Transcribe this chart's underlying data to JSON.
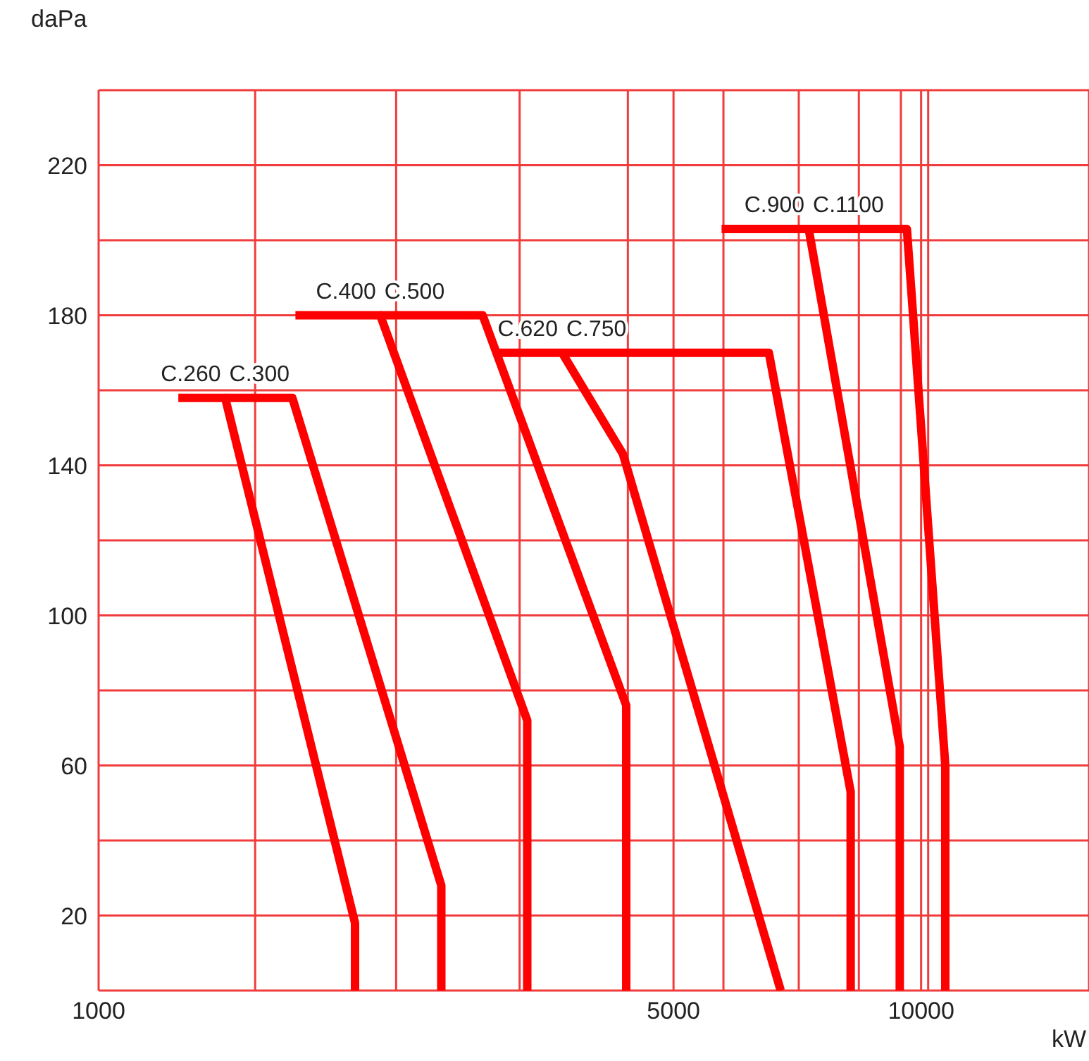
{
  "chart_data": {
    "type": "line",
    "xlabel": "kW",
    "ylabel": "daPa",
    "log": "x",
    "xlim": [
      1000,
      16000
    ],
    "xticks": [
      1000,
      {
        "value": 1550,
        "label": null
      },
      {
        "value": 2300,
        "label": null
      },
      {
        "value": 3250,
        "label": null
      },
      {
        "value": 4400,
        "label": null
      },
      5000,
      {
        "value": 5750,
        "label": null
      },
      {
        "value": 7100,
        "label": null
      },
      {
        "value": 8400,
        "label": null
      },
      {
        "value": 9450,
        "label": null
      },
      10000,
      {
        "value": 10200,
        "label": null
      }
    ],
    "ylim": [
      0,
      240
    ],
    "yticks": [
      {
        "value": 0,
        "label": null
      },
      20,
      {
        "value": 40,
        "label": null
      },
      60,
      {
        "value": 80,
        "label": null
      },
      100,
      {
        "value": 120,
        "label": null
      },
      140,
      {
        "value": 160,
        "label": null
      },
      180,
      {
        "value": 200,
        "label": null
      },
      220,
      {
        "value": 240,
        "label": null
      }
    ],
    "grid": true,
    "legend": false,
    "marker": "none",
    "line_style": "solid",
    "series": [
      {
        "name": "C.260",
        "color": "#ff0000",
        "x": [
          1250,
          1425,
          2050,
          2050
        ],
        "values": [
          158,
          158,
          18,
          0
        ]
      },
      {
        "name": "C.300",
        "color": "#ff0000",
        "x": [
          1425,
          1720,
          2610,
          2610
        ],
        "values": [
          158,
          158,
          28,
          0
        ]
      },
      {
        "name": "C.400",
        "color": "#ff0000",
        "x": [
          1735,
          2200,
          3320,
          3320
        ],
        "values": [
          180,
          180,
          72,
          0
        ]
      },
      {
        "name": "C.500",
        "color": "#ff0000",
        "x": [
          2200,
          2930,
          4380,
          4380
        ],
        "values": [
          180,
          180,
          76,
          0
        ]
      },
      {
        "name": "C.620",
        "color": "#ff0000",
        "x": [
          3050,
          3660,
          4340,
          6750
        ],
        "values": [
          170,
          170,
          143,
          0
        ]
      },
      {
        "name": "C.750",
        "color": "#ff0000",
        "x": [
          3660,
          6530,
          8210,
          8210
        ],
        "values": [
          170,
          170,
          53,
          0
        ]
      },
      {
        "name": "C.900",
        "color": "#ff0000",
        "x": [
          5720,
          7300,
          9420,
          9420
        ],
        "values": [
          203,
          203,
          65,
          0
        ]
      },
      {
        "name": "C.1100",
        "color": "#ff0000",
        "x": [
          7300,
          9610,
          10700,
          10700
        ],
        "values": [
          203,
          203,
          60,
          0
        ]
      }
    ]
  }
}
